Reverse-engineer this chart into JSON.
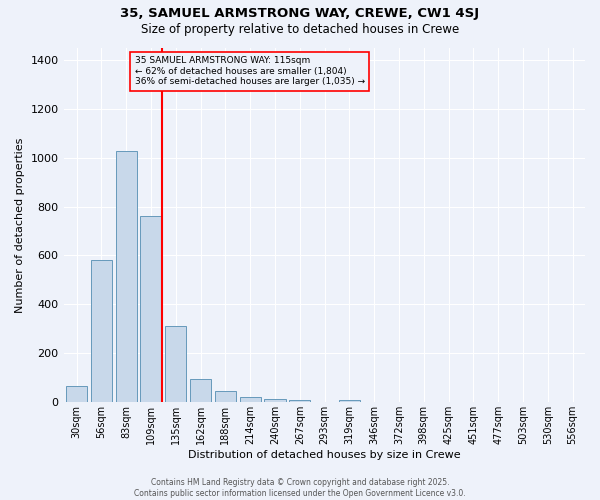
{
  "title_line1": "35, SAMUEL ARMSTRONG WAY, CREWE, CW1 4SJ",
  "title_line2": "Size of property relative to detached houses in Crewe",
  "xlabel": "Distribution of detached houses by size in Crewe",
  "ylabel": "Number of detached properties",
  "bar_labels": [
    "30sqm",
    "56sqm",
    "83sqm",
    "109sqm",
    "135sqm",
    "162sqm",
    "188sqm",
    "214sqm",
    "240sqm",
    "267sqm",
    "293sqm",
    "319sqm",
    "346sqm",
    "372sqm",
    "398sqm",
    "425sqm",
    "451sqm",
    "477sqm",
    "503sqm",
    "530sqm",
    "556sqm"
  ],
  "bar_values": [
    65,
    580,
    1025,
    760,
    310,
    95,
    45,
    23,
    15,
    10,
    0,
    10,
    0,
    0,
    0,
    0,
    0,
    0,
    0,
    0,
    0
  ],
  "bar_color": "#c8d8ea",
  "bar_edge_color": "#6699bb",
  "vline_color": "red",
  "vline_position": 3.43,
  "annotation_title": "35 SAMUEL ARMSTRONG WAY: 115sqm",
  "annotation_line2": "← 62% of detached houses are smaller (1,804)",
  "annotation_line3": "36% of semi-detached houses are larger (1,035) →",
  "annotation_edge_color": "red",
  "ylim": [
    0,
    1450
  ],
  "yticks": [
    0,
    200,
    400,
    600,
    800,
    1000,
    1200,
    1400
  ],
  "background_color": "#eef2fa",
  "grid_color": "#ffffff",
  "footer_line1": "Contains HM Land Registry data © Crown copyright and database right 2025.",
  "footer_line2": "Contains public sector information licensed under the Open Government Licence v3.0."
}
